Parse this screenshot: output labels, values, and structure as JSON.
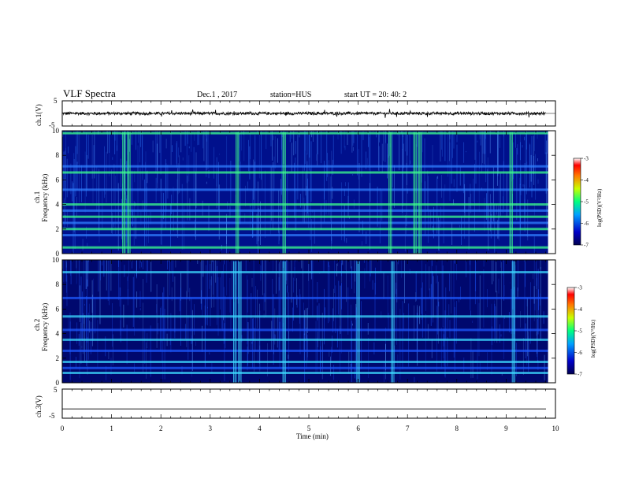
{
  "header": {
    "title": "VLF Spectra",
    "date": "Dec.1 , 2017",
    "station": "station=HUS",
    "start": "start UT =  20: 40: 2"
  },
  "colors": {
    "spec_low": "#00008c",
    "spec_mid": "#2f7dff",
    "spec_hi": "#3cff8c",
    "trace": "#000000"
  },
  "chart_data": [
    {
      "type": "line",
      "name": "ch1-waveform",
      "ylabel": "ch.1(V)",
      "ylim": [
        -5,
        5
      ],
      "yticks": [
        "5",
        "-5"
      ],
      "xlim": [
        0,
        10
      ],
      "description_level": "noise trace centered near 0 V, spanning 0 to 9.8 min"
    },
    {
      "type": "heatmap",
      "name": "ch1-spectrogram",
      "ylabel": "ch.1",
      "ylabel2": "Frequency (kHz)",
      "ylim": [
        0,
        10
      ],
      "yticks": [
        "0",
        "2",
        "4",
        "6",
        "8",
        "10"
      ],
      "xlim": [
        0,
        10
      ],
      "colorbar": {
        "label": "log(PSD)(V²/Hz)",
        "range": [
          -7,
          -3
        ],
        "ticks": [
          "-3",
          "-4",
          "-5",
          "-6",
          "-7"
        ]
      },
      "horizontal_bands_khz": [
        0.5,
        1.5,
        2.0,
        2.5,
        3.0,
        3.5,
        4.0,
        5.2,
        6.6,
        7.1,
        9.8
      ],
      "bursts_min": [
        1.25,
        1.35,
        3.55,
        4.5,
        6.65,
        7.15,
        7.25,
        9.1
      ]
    },
    {
      "type": "heatmap",
      "name": "ch2-spectrogram",
      "ylabel": "ch.2",
      "ylabel2": "Frequency (kHz)",
      "ylim": [
        0,
        10
      ],
      "yticks": [
        "0",
        "2",
        "4",
        "6",
        "8",
        "10"
      ],
      "xlim": [
        0,
        10
      ],
      "colorbar": {
        "label": "log(PSD)(V²/Hz)",
        "range": [
          -7,
          -3
        ],
        "ticks": [
          "-3",
          "-4",
          "-5",
          "-6",
          "-7"
        ]
      },
      "horizontal_bands_khz": [
        0.8,
        1.2,
        1.7,
        2.6,
        3.5,
        4.3,
        5.4,
        6.9,
        9.0
      ],
      "bursts_min": [
        3.5,
        3.6,
        4.5,
        6.0,
        6.7,
        9.15
      ]
    },
    {
      "type": "line",
      "name": "ch3-waveform",
      "ylabel": "ch.3(V)",
      "ylim": [
        -5,
        5
      ],
      "yticks": [
        "5",
        "-5"
      ],
      "xlim": [
        0,
        10
      ],
      "constant_value": -1.8
    }
  ],
  "xaxis": {
    "label": "Time (min)",
    "ticks": [
      "0",
      "1",
      "2",
      "3",
      "4",
      "5",
      "6",
      "7",
      "8",
      "9",
      "10"
    ]
  }
}
